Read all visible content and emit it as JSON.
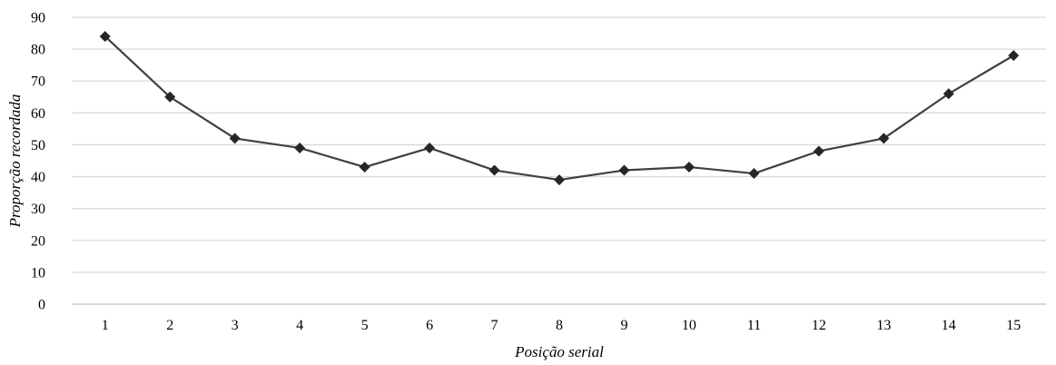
{
  "chart_data": {
    "type": "line",
    "title": "",
    "xlabel": "Posição serial",
    "ylabel": "Proporção recordada",
    "categories": [
      "1",
      "2",
      "3",
      "4",
      "5",
      "6",
      "7",
      "8",
      "9",
      "10",
      "11",
      "12",
      "13",
      "14",
      "15"
    ],
    "series": [
      {
        "values": [
          84,
          65,
          52,
          49,
          43,
          49,
          42,
          39,
          42,
          43,
          41,
          48,
          52,
          66,
          78
        ]
      }
    ],
    "ylim": [
      0,
      90
    ],
    "yticks": [
      0,
      10,
      20,
      30,
      40,
      50,
      60,
      70,
      80,
      90
    ],
    "grid": true,
    "legend": "none",
    "marker": "diamond",
    "colors": {
      "line": "#404040",
      "marker": "#262626",
      "grid": "#d9d9d9",
      "axis": "#bfbfbf"
    }
  }
}
